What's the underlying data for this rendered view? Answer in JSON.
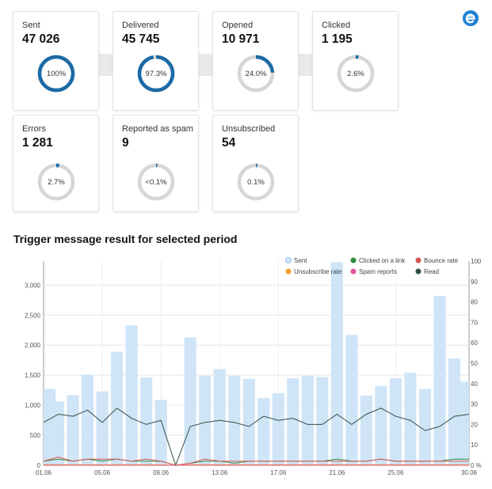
{
  "funnel": [
    {
      "label": "Sent",
      "value": "47 026",
      "percent_label": "100%",
      "fraction": 1.0
    },
    {
      "label": "Delivered",
      "value": "45 745",
      "percent_label": "97.3%",
      "fraction": 0.973
    },
    {
      "label": "Opened",
      "value": "10 971",
      "percent_label": "24.0%",
      "fraction": 0.24
    },
    {
      "label": "Clicked",
      "value": "1 195",
      "percent_label": "2.6%",
      "fraction": 0.026
    }
  ],
  "secondary": [
    {
      "label": "Errors",
      "value": "1 281",
      "percent_label": "2.7%",
      "fraction": 0.027
    },
    {
      "label": "Reported as spam",
      "value": "9",
      "percent_label": "<0.1%",
      "fraction": 0.001
    },
    {
      "label": "Unsubscribed",
      "value": "54",
      "percent_label": "0.1%",
      "fraction": 0.001
    }
  ],
  "colors": {
    "accent": "#1b6aa5",
    "track": "#d6d6d6",
    "bar": "#cfe4f7",
    "read": "#2e4f3f",
    "bounce": "#d9534f",
    "click": "#2e8b3d",
    "spam": "#e0559a",
    "unsub": "#f0a030"
  },
  "chart_data": {
    "type": "bar",
    "title": "Trigger message result for selected period",
    "x_ticks": [
      "01.06",
      "05.06",
      "09.06",
      "13.06",
      "17.06",
      "21.06",
      "25.06",
      "30.06"
    ],
    "categories": [
      "01.06",
      "02.06",
      "03.06",
      "04.06",
      "05.06",
      "06.06",
      "07.06",
      "08.06",
      "09.06",
      "10.06",
      "11.06",
      "12.06",
      "13.06",
      "14.06",
      "15.06",
      "16.06",
      "17.06",
      "18.06",
      "19.06",
      "20.06",
      "21.06",
      "22.06",
      "23.06",
      "24.06",
      "25.06",
      "26.06",
      "27.06",
      "28.06",
      "29.06",
      "30.06"
    ],
    "y_left": {
      "ylim": [
        0,
        3400
      ],
      "ticks": [
        "0",
        "500",
        "1,000",
        "1,500",
        "2,000",
        "2,500",
        "3,000"
      ],
      "tick_values": [
        0,
        500,
        1000,
        1500,
        2000,
        2500,
        3000
      ]
    },
    "y_right": {
      "ylim": [
        0,
        100
      ],
      "ticks": [
        "0 %",
        "10",
        "20",
        "30",
        "40",
        "50",
        "60",
        "70",
        "80",
        "90",
        "100"
      ],
      "tick_values": [
        0,
        10,
        20,
        30,
        40,
        50,
        60,
        70,
        80,
        90,
        100
      ]
    },
    "legend": [
      "Sent",
      "Clicked on a link",
      "Bounce rate",
      "Unsubscribe rate",
      "Spam reports",
      "Read"
    ],
    "series": [
      {
        "name": "Sent",
        "axis": "left",
        "kind": "bar",
        "values": [
          1270,
          1060,
          1170,
          1510,
          1230,
          1890,
          2330,
          1460,
          1090,
          0,
          2130,
          1490,
          1600,
          1490,
          1440,
          1120,
          1200,
          1450,
          1490,
          1470,
          3380,
          2170,
          1160,
          1320,
          1450,
          1540,
          1270,
          2820,
          1780,
          1390
        ]
      },
      {
        "name": "Read",
        "axis": "right",
        "kind": "line",
        "values": [
          21,
          25,
          24,
          27,
          21,
          28,
          23,
          20,
          22,
          0,
          19,
          21,
          22,
          21,
          19,
          24,
          22,
          23,
          20,
          20,
          25,
          20,
          25,
          28,
          24,
          22,
          17,
          19,
          24,
          25
        ]
      },
      {
        "name": "Clicked on a link",
        "axis": "right",
        "kind": "line",
        "values": [
          2,
          3,
          2,
          3,
          2,
          3,
          2,
          2,
          2,
          0,
          1,
          2,
          2,
          1,
          2,
          2,
          2,
          2,
          2,
          2,
          3,
          2,
          2,
          3,
          2,
          2,
          2,
          2,
          3,
          3
        ]
      },
      {
        "name": "Bounce rate",
        "axis": "right",
        "kind": "line",
        "values": [
          2,
          4,
          2,
          3,
          3,
          3,
          2,
          3,
          2,
          0,
          1,
          3,
          2,
          2,
          2,
          2,
          2,
          2,
          2,
          2,
          2,
          2,
          2,
          3,
          2,
          2,
          2,
          2,
          2,
          2
        ]
      },
      {
        "name": "Unsubscribe rate",
        "axis": "right",
        "kind": "line",
        "values": [
          0.3,
          0.3,
          0.3,
          0.3,
          0.3,
          0.3,
          0.3,
          0.3,
          0.3,
          0,
          0.3,
          0.3,
          0.3,
          0.3,
          0.3,
          0.3,
          0.3,
          0.3,
          0.3,
          0.3,
          0.3,
          0.3,
          0.3,
          0.3,
          0.3,
          0.3,
          0.3,
          0.3,
          0.3,
          0.3
        ]
      },
      {
        "name": "Spam reports",
        "axis": "right",
        "kind": "line",
        "values": [
          0,
          0,
          0,
          0,
          0,
          0,
          0,
          0,
          0,
          0,
          0,
          0,
          0,
          0,
          0,
          0,
          0,
          0,
          0,
          0,
          0,
          0,
          0,
          0,
          0,
          0,
          0,
          0,
          0,
          0
        ]
      }
    ]
  }
}
